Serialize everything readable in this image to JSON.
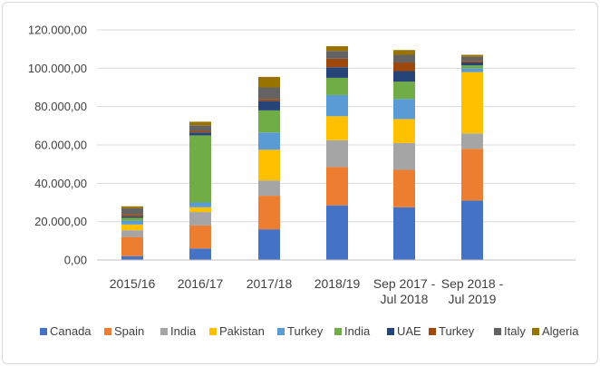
{
  "chart_data": {
    "type": "bar",
    "stacked": true,
    "title": "",
    "xlabel": "",
    "ylabel": "",
    "ylim": [
      0,
      120000
    ],
    "y_ticks": [
      0,
      20000,
      40000,
      60000,
      80000,
      100000,
      120000
    ],
    "y_tick_labels": [
      "0,00",
      "20.000,00",
      "40.000,00",
      "60.000,00",
      "80.000,00",
      "100.000,00",
      "120.000,00"
    ],
    "grid": true,
    "legend_position": "bottom",
    "categories": [
      [
        "2015/16"
      ],
      [
        "2016/17"
      ],
      [
        "2017/18"
      ],
      [
        "2018/19"
      ],
      [
        "Sep 2017 -",
        "Jul 2018"
      ],
      [
        "Sep 2018 -",
        "Jul 2019"
      ]
    ],
    "series": [
      {
        "name": "Canada",
        "color": "#4472c4",
        "values": [
          2000,
          6000,
          16000,
          28500,
          27500,
          31000
        ]
      },
      {
        "name": "Spain",
        "color": "#ed7d31",
        "values": [
          10000,
          12000,
          17500,
          20000,
          19500,
          27000
        ]
      },
      {
        "name": "India",
        "color": "#a5a5a5",
        "values": [
          3500,
          7000,
          8000,
          14000,
          14000,
          8000
        ]
      },
      {
        "name": "Pakistan",
        "color": "#ffc000",
        "values": [
          3000,
          2500,
          16000,
          12500,
          12500,
          32000
        ]
      },
      {
        "name": "Turkey",
        "color": "#5b9bd5",
        "values": [
          2000,
          2500,
          9000,
          11000,
          10500,
          2000
        ]
      },
      {
        "name": "India",
        "color": "#70ad47",
        "values": [
          1500,
          35000,
          11500,
          9000,
          9000,
          1500
        ]
      },
      {
        "name": "UAE",
        "color": "#264478",
        "values": [
          800,
          1500,
          5000,
          5500,
          5500,
          1500
        ]
      },
      {
        "name": "Turkey",
        "color": "#9e480e",
        "values": [
          1000,
          800,
          1000,
          4500,
          4500,
          800
        ]
      },
      {
        "name": "Italy",
        "color": "#636363",
        "values": [
          3200,
          2800,
          6000,
          4000,
          4000,
          2200
        ]
      },
      {
        "name": "Algeria",
        "color": "#997300",
        "values": [
          1000,
          2000,
          5500,
          2500,
          2500,
          1000
        ]
      }
    ]
  }
}
